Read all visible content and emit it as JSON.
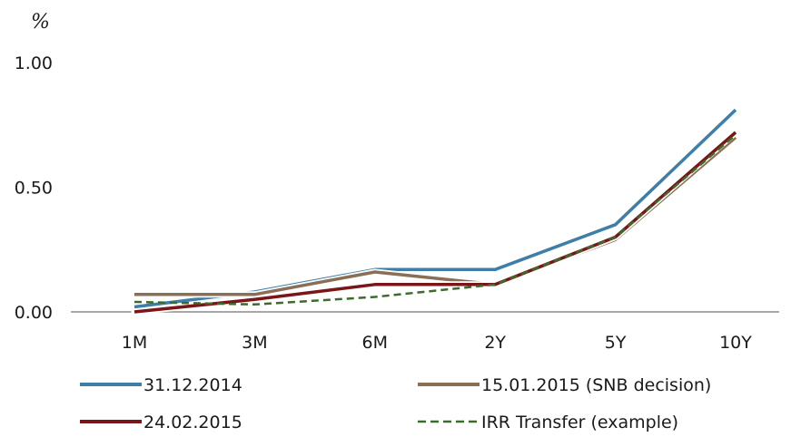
{
  "chart_data": {
    "type": "line",
    "title": "",
    "ylabel": "%",
    "xlabel": "",
    "categories": [
      "1M",
      "3M",
      "6M",
      "2Y",
      "5Y",
      "10Y"
    ],
    "y_ticks": [
      "0.00",
      "0.50",
      "1.00"
    ],
    "ylim": [
      0,
      1.0
    ],
    "grid": false,
    "legend_position": "bottom",
    "series": [
      {
        "name": "31.12.2014",
        "color": "#3f7ea8",
        "style": "solid",
        "values": [
          0.02,
          0.08,
          0.17,
          0.17,
          0.35,
          0.81
        ]
      },
      {
        "name": "15.01.2015 (SNB decision)",
        "color": "#8a6e55",
        "style": "solid",
        "values": [
          0.07,
          0.07,
          0.16,
          0.11,
          0.29,
          0.7
        ]
      },
      {
        "name": "24.02.2015",
        "color": "#7a1518",
        "style": "solid",
        "values": [
          0.0,
          0.05,
          0.11,
          0.11,
          0.3,
          0.72
        ]
      },
      {
        "name": "IRR Transfer (example)",
        "color": "#3d6b2a",
        "style": "dashed",
        "values": [
          0.04,
          0.03,
          0.06,
          0.11,
          0.3,
          0.71
        ]
      }
    ]
  }
}
